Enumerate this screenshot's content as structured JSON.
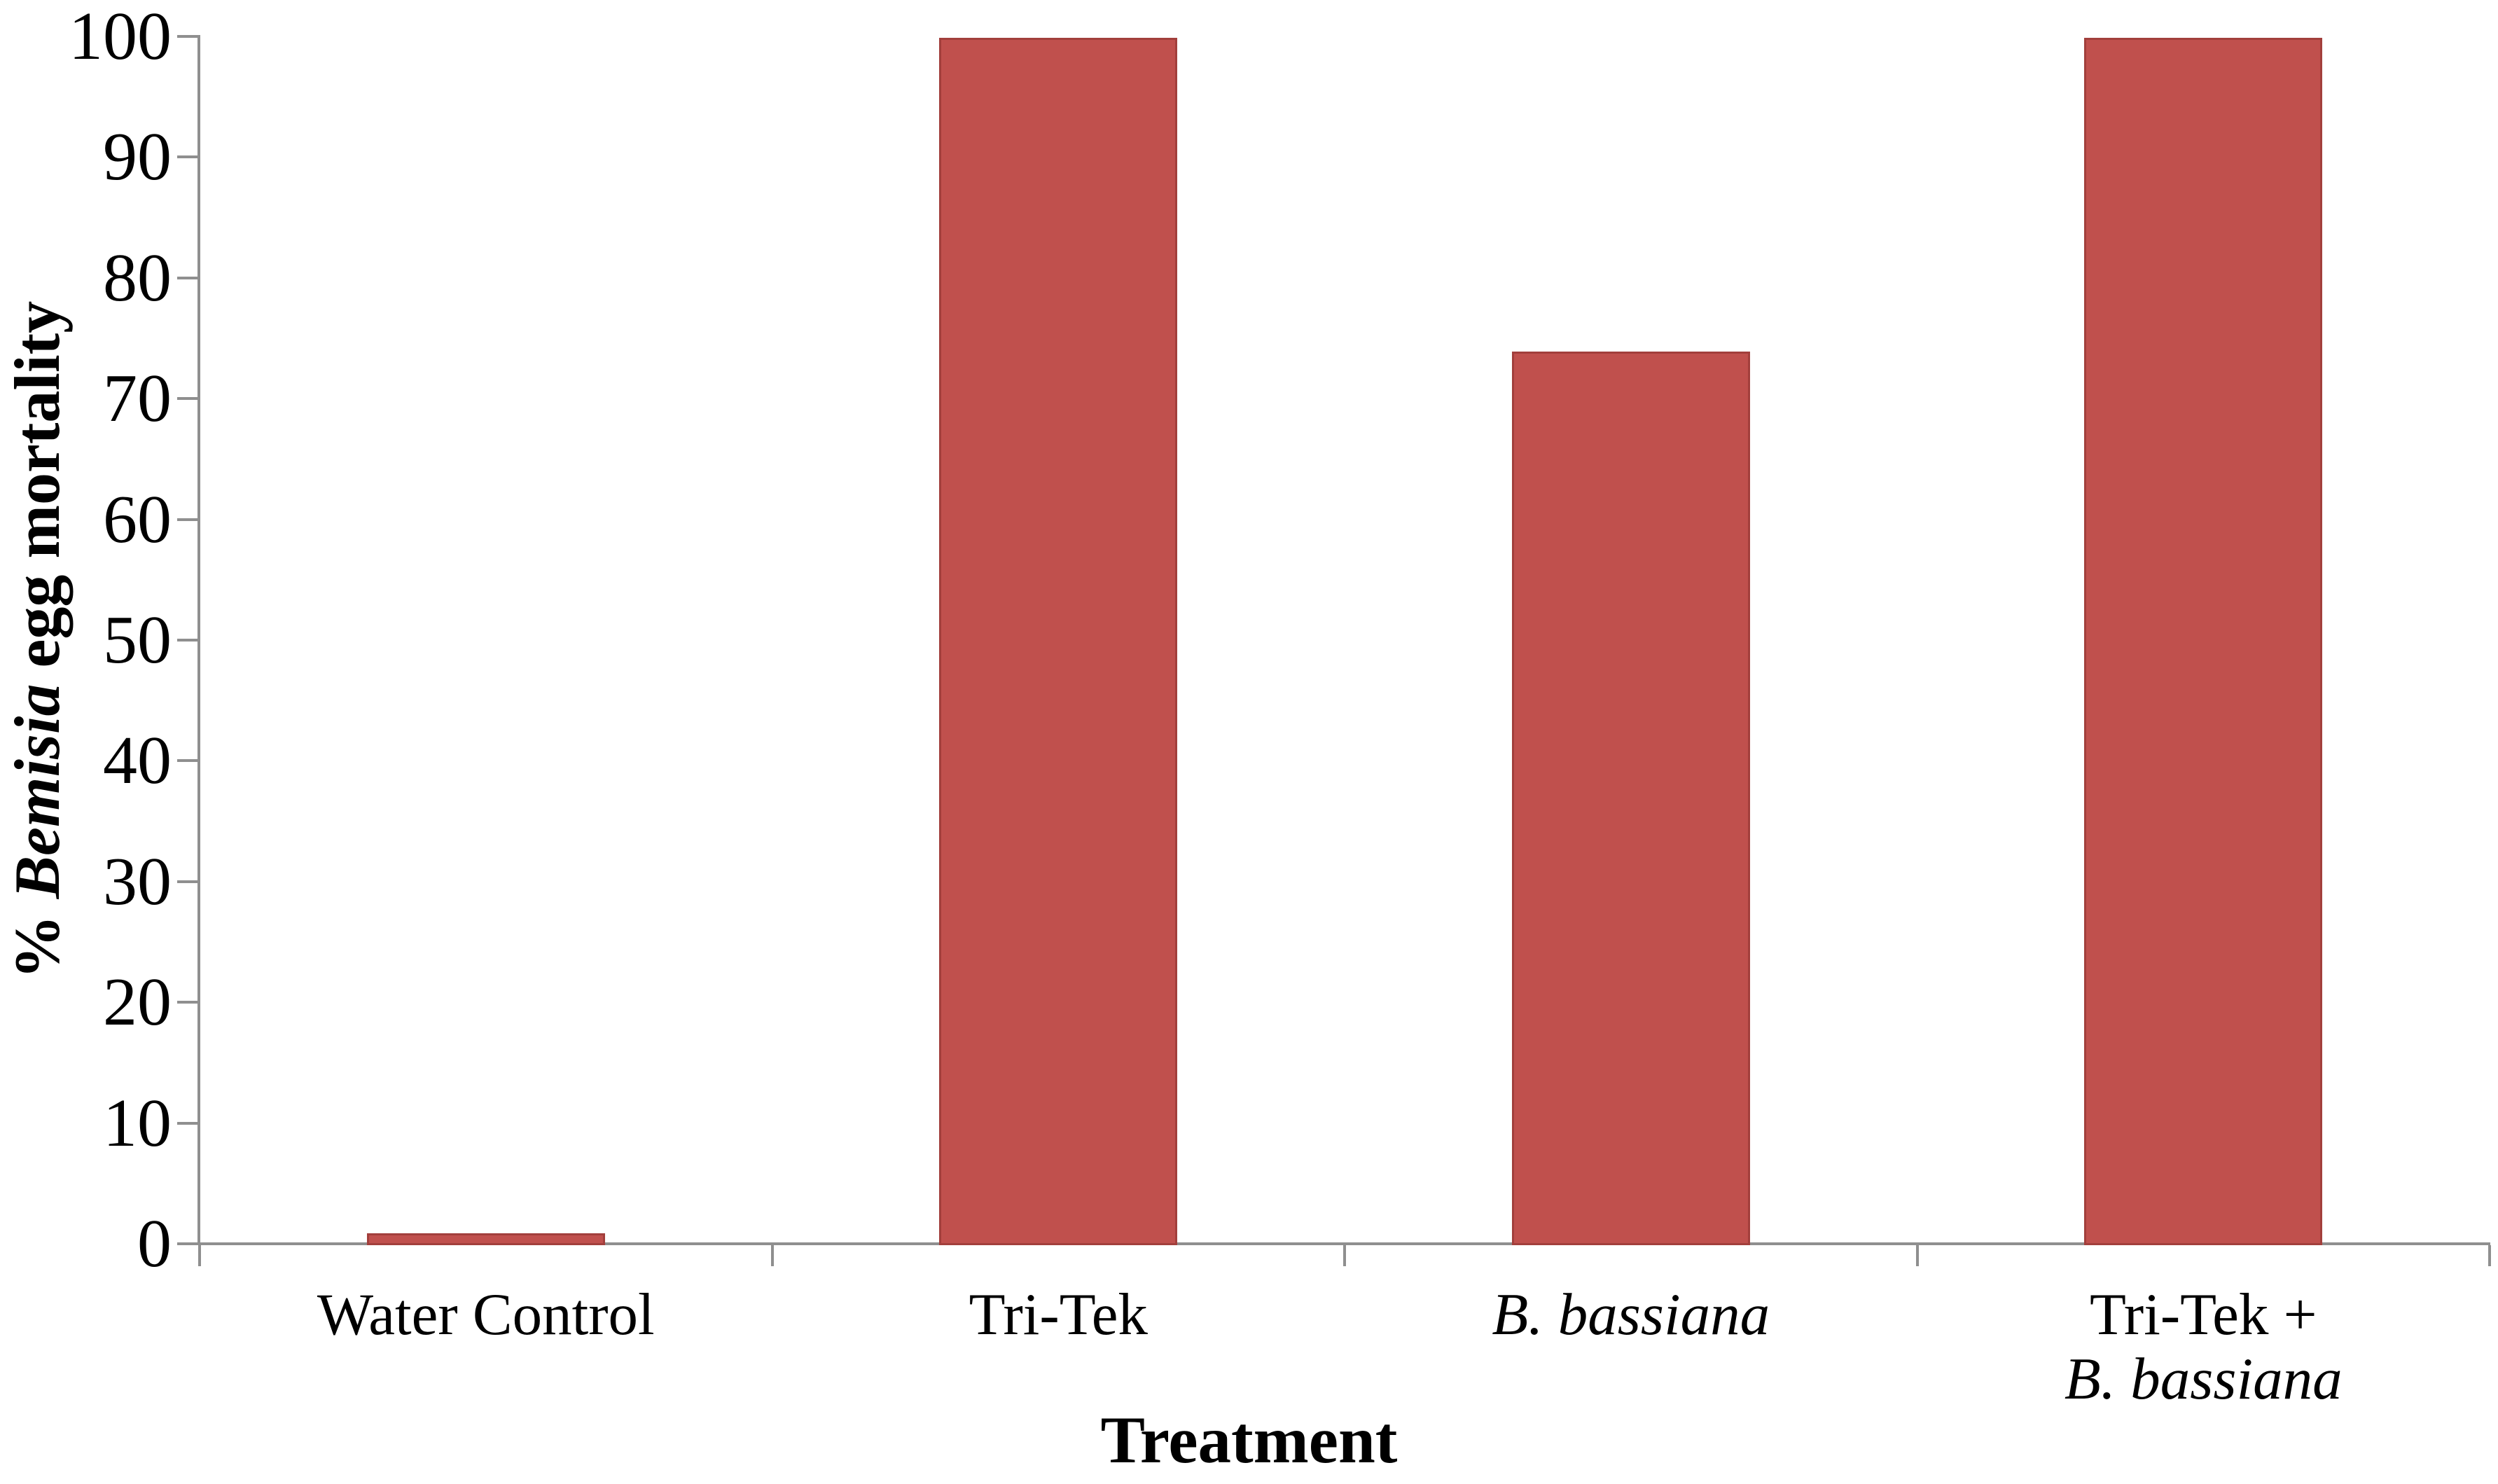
{
  "chart_data": {
    "type": "bar",
    "title": "",
    "xlabel": "Treatment",
    "ylabel": "% Bemisia egg mortality",
    "ylabel_parts": [
      {
        "text": "% ",
        "italic": false
      },
      {
        "text": "Bemisia",
        "italic": true
      },
      {
        "text": " egg mortality",
        "italic": false
      }
    ],
    "categories": [
      "Water Control",
      "Tri-Tek",
      "B. bassiana",
      "Tri-Tek + B. bassiana"
    ],
    "category_label_lines": [
      [
        {
          "text": "Water Control",
          "italic": false
        }
      ],
      [
        {
          "text": "Tri-Tek",
          "italic": false
        }
      ],
      [
        {
          "text": "B. bassiana",
          "italic": true
        }
      ],
      [
        {
          "text": "Tri-Tek +",
          "italic": false
        },
        {
          "text": "B. bassiana",
          "italic": true
        }
      ]
    ],
    "values": [
      1,
      100,
      74,
      100
    ],
    "ylim": [
      0,
      100
    ],
    "ytick_step": 10,
    "ytick_labels": [
      "0",
      "10",
      "20",
      "30",
      "40",
      "50",
      "60",
      "70",
      "80",
      "90",
      "100"
    ],
    "grid": false,
    "legend": "none",
    "colors": {
      "bar_fill": "#C0504D",
      "bar_border": "#A23F3C",
      "axis": "#8F8F8F",
      "text": "#000000",
      "background": "#FFFFFF"
    }
  }
}
